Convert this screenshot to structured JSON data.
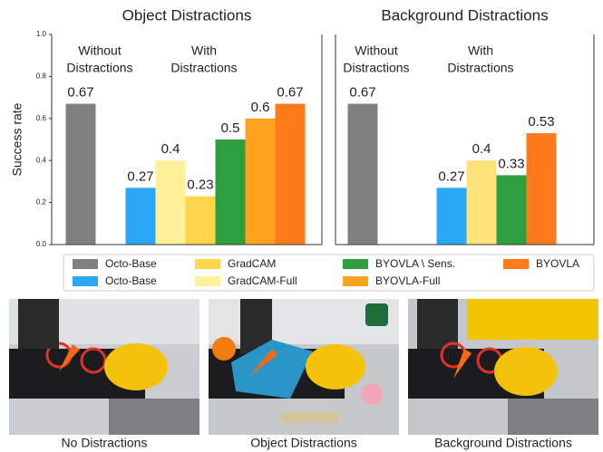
{
  "chart_data": [
    {
      "type": "bar",
      "title": "Object Distractions",
      "ylabel": "Success rate",
      "ylim": [
        0,
        1
      ],
      "yticks": [
        {
          "value": 0,
          "label": "0.0"
        },
        {
          "value": 0.2,
          "label": "0.2"
        },
        {
          "value": 0.4,
          "label": "0.4"
        },
        {
          "value": 0.6,
          "label": "0.6"
        },
        {
          "value": 0.8,
          "label": "0.8"
        },
        {
          "value": 1,
          "label": "1.0"
        }
      ],
      "annotations": [
        [
          "Without",
          "Distractions"
        ],
        [
          "With",
          "Distractions"
        ]
      ],
      "series": [
        {
          "color": "#808080",
          "values": [
            0.67
          ]
        },
        {
          "color": "#2aa7f5",
          "values": [
            0.27
          ]
        },
        {
          "color": "#fff09a",
          "values": [
            0.4
          ]
        },
        {
          "color": "#ffd54a",
          "values": [
            0.23
          ]
        },
        {
          "color": "#2e9e3f",
          "values": [
            0.5
          ]
        },
        {
          "color": "#ffa21c",
          "values": [
            0.6
          ]
        },
        {
          "color": "#ff7a1a",
          "values": [
            0.67
          ]
        }
      ]
    },
    {
      "type": "bar",
      "title": "Background Distractions",
      "ylim": [
        0,
        1
      ],
      "annotations": [
        [
          "Without",
          "Distractions"
        ],
        [
          "With",
          "Distractions"
        ]
      ],
      "series": [
        {
          "color": "#808080",
          "values": [
            0.67
          ]
        },
        {
          "color": "#2aa7f5",
          "values": [
            0.27
          ]
        },
        {
          "color": "#ffe27a",
          "values": [
            0.4
          ]
        },
        {
          "color": "#2e9e3f",
          "values": [
            0.33
          ]
        },
        {
          "color": "#ff7a1a",
          "values": [
            0.53
          ]
        }
      ]
    }
  ],
  "legend": [
    {
      "name": "Octo-Base",
      "color": "#808080"
    },
    {
      "name": "Octo-Base",
      "color": "#2aa7f5"
    },
    {
      "name": "GradCAM",
      "color": "#ffd54a"
    },
    {
      "name": "GradCAM-Full",
      "color": "#fff09a"
    },
    {
      "name": "BYOVLA \\ Sens.",
      "color": "#2e9e3f"
    },
    {
      "name": "BYOVLA-Full",
      "color": "#ffa21c"
    },
    {
      "name": "BYOVLA",
      "color": "#ff7a1a"
    }
  ],
  "photos": {
    "captions": [
      "No Distractions",
      "Object Distractions",
      "Background Distractions"
    ]
  }
}
